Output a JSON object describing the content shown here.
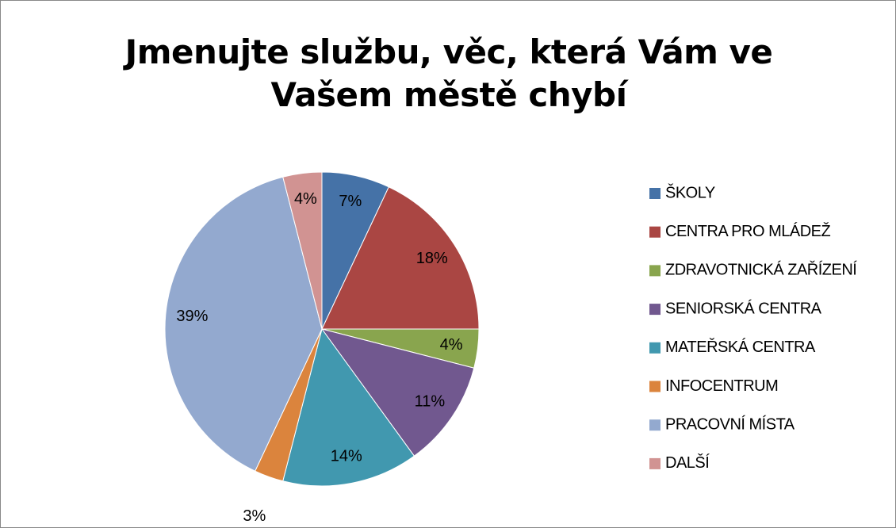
{
  "chart_data": {
    "type": "pie",
    "title": "Jmenujte službu, věc, která Vám ve Vašem městě chybí",
    "categories": [
      "ŠKOLY",
      "CENTRA PRO MLÁDEŽ",
      "ZDRAVOTNICKÁ ZAŘÍZENÍ",
      "SENIORSKÁ CENTRA",
      "MATEŘSKÁ CENTRA",
      "INFOCENTRUM",
      "PRACOVNÍ MÍSTA",
      "DALŠÍ"
    ],
    "values": [
      7,
      18,
      4,
      11,
      14,
      3,
      39,
      4
    ],
    "value_labels": [
      "7%",
      "18%",
      "4%",
      "11%",
      "14%",
      "3%",
      "39%",
      "4%"
    ],
    "colors": [
      "#4572a7",
      "#aa4643",
      "#89a54e",
      "#71588f",
      "#4198af",
      "#db843d",
      "#93a9cf",
      "#d19392"
    ],
    "legend": "right"
  }
}
